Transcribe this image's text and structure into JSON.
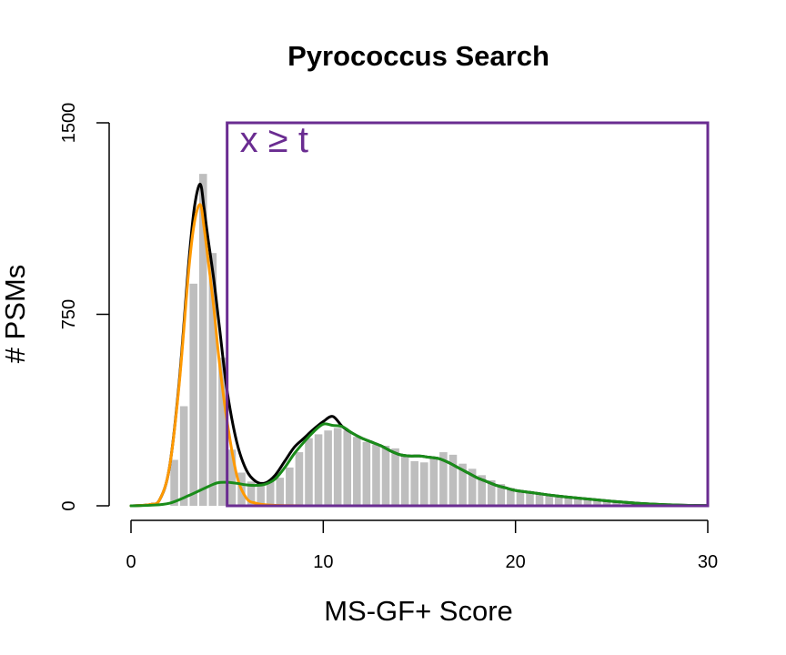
{
  "chart_data": {
    "type": "bar",
    "title": "Pyrococcus Search",
    "xlabel": "MS-GF+ Score",
    "ylabel": "# PSMs",
    "xlim": [
      0,
      30
    ],
    "ylim": [
      0,
      1500
    ],
    "x_ticks": [
      "0",
      "10",
      "20",
      "30"
    ],
    "y_ticks": [
      "0",
      "750",
      "1500"
    ],
    "annotation": "x ≥ t",
    "threshold": {
      "x_start": 5,
      "x_end": 30,
      "y_top": 1500
    },
    "histogram": {
      "name": "",
      "color": "#bebebe",
      "bin_width": 0.5,
      "bins_start": [
        2.0,
        2.5,
        3.0,
        3.5,
        4.0,
        4.5,
        5.0,
        5.5,
        6.0,
        6.5,
        7.0,
        7.5,
        8.0,
        8.5,
        9.0,
        9.5,
        10.0,
        10.5,
        11.0,
        11.5,
        12.0,
        12.5,
        13.0,
        13.5,
        14.0,
        14.5,
        15.0,
        15.5,
        16.0,
        16.5,
        17.0,
        17.5,
        18.0,
        18.5,
        19.0,
        19.5,
        20.0,
        20.5,
        21.0,
        21.5,
        22.0,
        22.5,
        23.0,
        23.5,
        24.0,
        24.5,
        25.0,
        25.5,
        26.0,
        26.5,
        27.0,
        27.5,
        28.0,
        28.5,
        29.0,
        29.5
      ],
      "counts": [
        180,
        390,
        870,
        1300,
        990,
        580,
        220,
        130,
        95,
        90,
        95,
        110,
        150,
        210,
        265,
        280,
        295,
        305,
        295,
        270,
        250,
        240,
        235,
        225,
        200,
        175,
        170,
        185,
        210,
        200,
        165,
        145,
        120,
        100,
        85,
        70,
        55,
        50,
        47,
        45,
        42,
        38,
        32,
        26,
        22,
        18,
        14,
        10,
        8,
        6,
        5,
        4,
        3,
        2,
        2,
        1
      ]
    },
    "series": [
      {
        "name": "",
        "color": "#000000",
        "x": [
          0,
          1,
          1.5,
          2,
          2.5,
          3,
          3.3,
          3.6,
          3.8,
          4.0,
          4.3,
          4.6,
          5.0,
          5.5,
          6.0,
          6.5,
          7.0,
          7.5,
          8.0,
          8.5,
          9.0,
          9.5,
          10.0,
          10.5,
          11.0,
          11.5,
          12.0,
          12.5,
          13.0,
          13.5,
          14.0,
          14.5,
          15.0,
          15.5,
          16.0,
          16.5,
          17.0,
          17.5,
          18.0,
          18.5,
          19.0,
          19.5,
          20.0,
          21.0,
          22.0,
          23.0,
          24.0,
          25.0,
          26.0,
          27.0,
          28.0,
          29.0,
          30.0
        ],
        "y": [
          0,
          5,
          25,
          150,
          480,
          950,
          1170,
          1260,
          1165,
          1050,
          890,
          700,
          450,
          250,
          140,
          95,
          90,
          120,
          175,
          230,
          265,
          300,
          330,
          350,
          310,
          285,
          265,
          250,
          235,
          215,
          200,
          195,
          195,
          190,
          185,
          170,
          150,
          130,
          110,
          95,
          80,
          70,
          60,
          50,
          40,
          32,
          25,
          18,
          12,
          7,
          4,
          2,
          1
        ]
      },
      {
        "name": "",
        "color": "#ff9900",
        "x": [
          0,
          1,
          1.5,
          2,
          2.5,
          3,
          3.3,
          3.6,
          3.8,
          4.0,
          4.3,
          4.6,
          5.0,
          5.5,
          6.0,
          6.5,
          7.0,
          7.5,
          8.0,
          9.0,
          10.0,
          15.0,
          20.0,
          25.0,
          30.0
        ],
        "y": [
          0,
          5,
          25,
          150,
          470,
          920,
          1110,
          1180,
          1090,
          970,
          780,
          560,
          330,
          120,
          30,
          10,
          4,
          2,
          1,
          0,
          0,
          0,
          0,
          0,
          0
        ]
      },
      {
        "name": "",
        "color": "#1a8c1a",
        "x": [
          0,
          1,
          2,
          3,
          4,
          4.5,
          5.0,
          5.5,
          6.0,
          6.5,
          7.0,
          7.5,
          8.0,
          8.5,
          9.0,
          9.5,
          10.0,
          10.5,
          11.0,
          11.5,
          12.0,
          12.5,
          13.0,
          13.5,
          14.0,
          14.5,
          15.0,
          15.5,
          16.0,
          16.5,
          17.0,
          17.5,
          18.0,
          18.5,
          19.0,
          19.5,
          20.0,
          21.0,
          22.0,
          23.0,
          24.0,
          25.0,
          26.0,
          27.0,
          28.0,
          29.0,
          30.0
        ],
        "y": [
          0,
          2,
          10,
          40,
          75,
          90,
          92,
          88,
          82,
          80,
          85,
          105,
          150,
          205,
          250,
          290,
          320,
          315,
          310,
          285,
          265,
          250,
          235,
          215,
          200,
          195,
          195,
          190,
          185,
          170,
          150,
          130,
          110,
          95,
          80,
          70,
          60,
          50,
          40,
          32,
          25,
          18,
          12,
          7,
          4,
          2,
          1
        ]
      }
    ]
  }
}
